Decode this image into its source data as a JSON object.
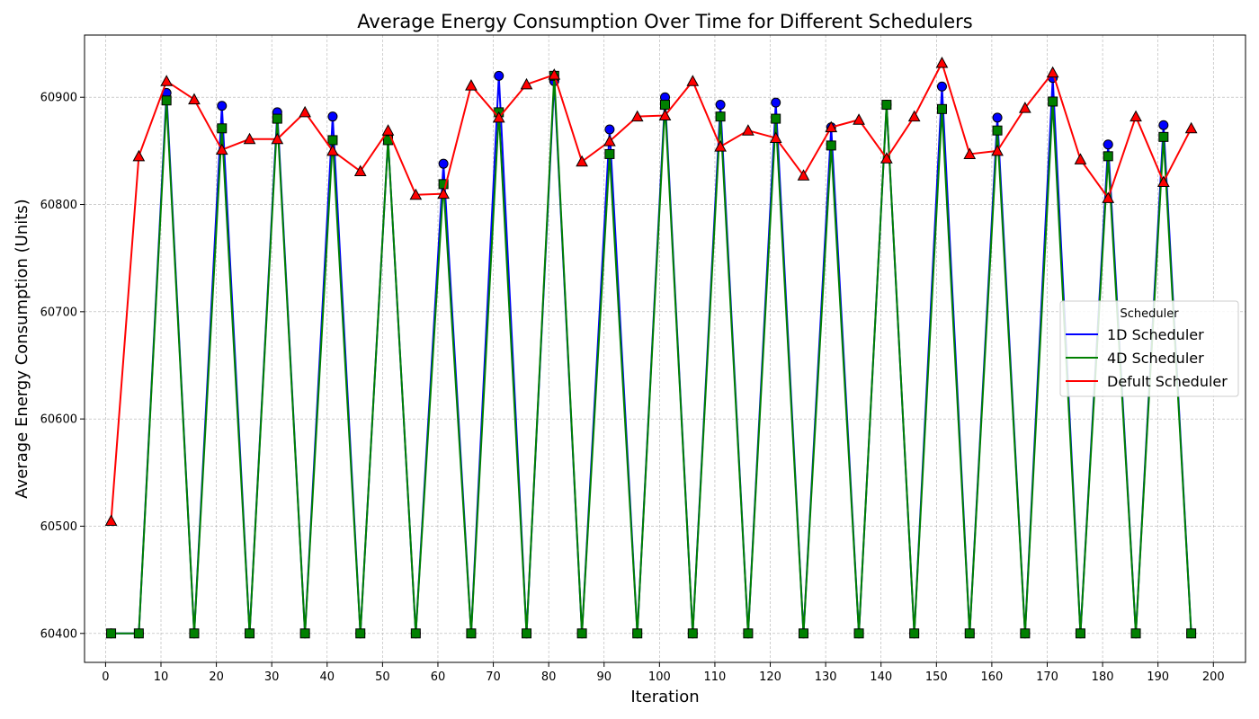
{
  "chart_data": {
    "type": "line",
    "title": "Average Energy Consumption Over Time for Different Schedulers",
    "xlabel": "Iteration",
    "ylabel": "Average Energy Consumption (Units)",
    "xlim": [
      -3.8,
      205.8
    ],
    "ylim": [
      60373,
      60958
    ],
    "xticks": [
      0,
      10,
      20,
      30,
      40,
      50,
      60,
      70,
      80,
      90,
      100,
      110,
      120,
      130,
      140,
      150,
      160,
      170,
      180,
      190,
      200
    ],
    "yticks": [
      60400,
      60500,
      60600,
      60700,
      60800,
      60900
    ],
    "grid": true,
    "legend": {
      "title": "Scheduler",
      "position": "center-right"
    },
    "x": [
      1,
      6,
      11,
      16,
      21,
      26,
      31,
      36,
      41,
      46,
      51,
      56,
      61,
      66,
      71,
      76,
      81,
      86,
      91,
      96,
      101,
      106,
      111,
      116,
      121,
      126,
      131,
      136,
      141,
      146,
      151,
      156,
      161,
      166,
      171,
      176,
      181,
      186,
      191,
      196
    ],
    "series": [
      {
        "name": "1D Scheduler",
        "color": "#0000ff",
        "marker": "circle",
        "values": [
          60400,
          60400,
          60904,
          60400,
          60892,
          60400,
          60886,
          60400,
          60882,
          60400,
          60860,
          60400,
          60838,
          60400,
          60920,
          60400,
          60915,
          60400,
          60870,
          60400,
          60900,
          60400,
          60893,
          60400,
          60895,
          60400,
          60872,
          60400,
          60893,
          60400,
          60910,
          60400,
          60881,
          60400,
          60918,
          60400,
          60856,
          60400,
          60874,
          60400
        ]
      },
      {
        "name": "4D Scheduler",
        "color": "#008000",
        "marker": "square",
        "values": [
          60400,
          60400,
          60897,
          60400,
          60871,
          60400,
          60880,
          60400,
          60860,
          60400,
          60860,
          60400,
          60819,
          60400,
          60886,
          60400,
          60920,
          60400,
          60847,
          60400,
          60893,
          60400,
          60882,
          60400,
          60880,
          60400,
          60855,
          60400,
          60893,
          60400,
          60889,
          60400,
          60869,
          60400,
          60896,
          60400,
          60845,
          60400,
          60863,
          60400
        ]
      },
      {
        "name": "Defult Scheduler",
        "color": "#ff0000",
        "marker": "triangle",
        "values": [
          60505,
          60845,
          60915,
          60898,
          60851,
          60861,
          60861,
          60886,
          60850,
          60831,
          60869,
          60809,
          60810,
          60911,
          60881,
          60912,
          60921,
          60840,
          60859,
          60882,
          60883,
          60915,
          60854,
          60869,
          60862,
          60827,
          60872,
          60879,
          60843,
          60882,
          60932,
          60847,
          60850,
          60890,
          60923,
          60842,
          60806,
          60882,
          60821,
          60871
        ]
      }
    ]
  }
}
